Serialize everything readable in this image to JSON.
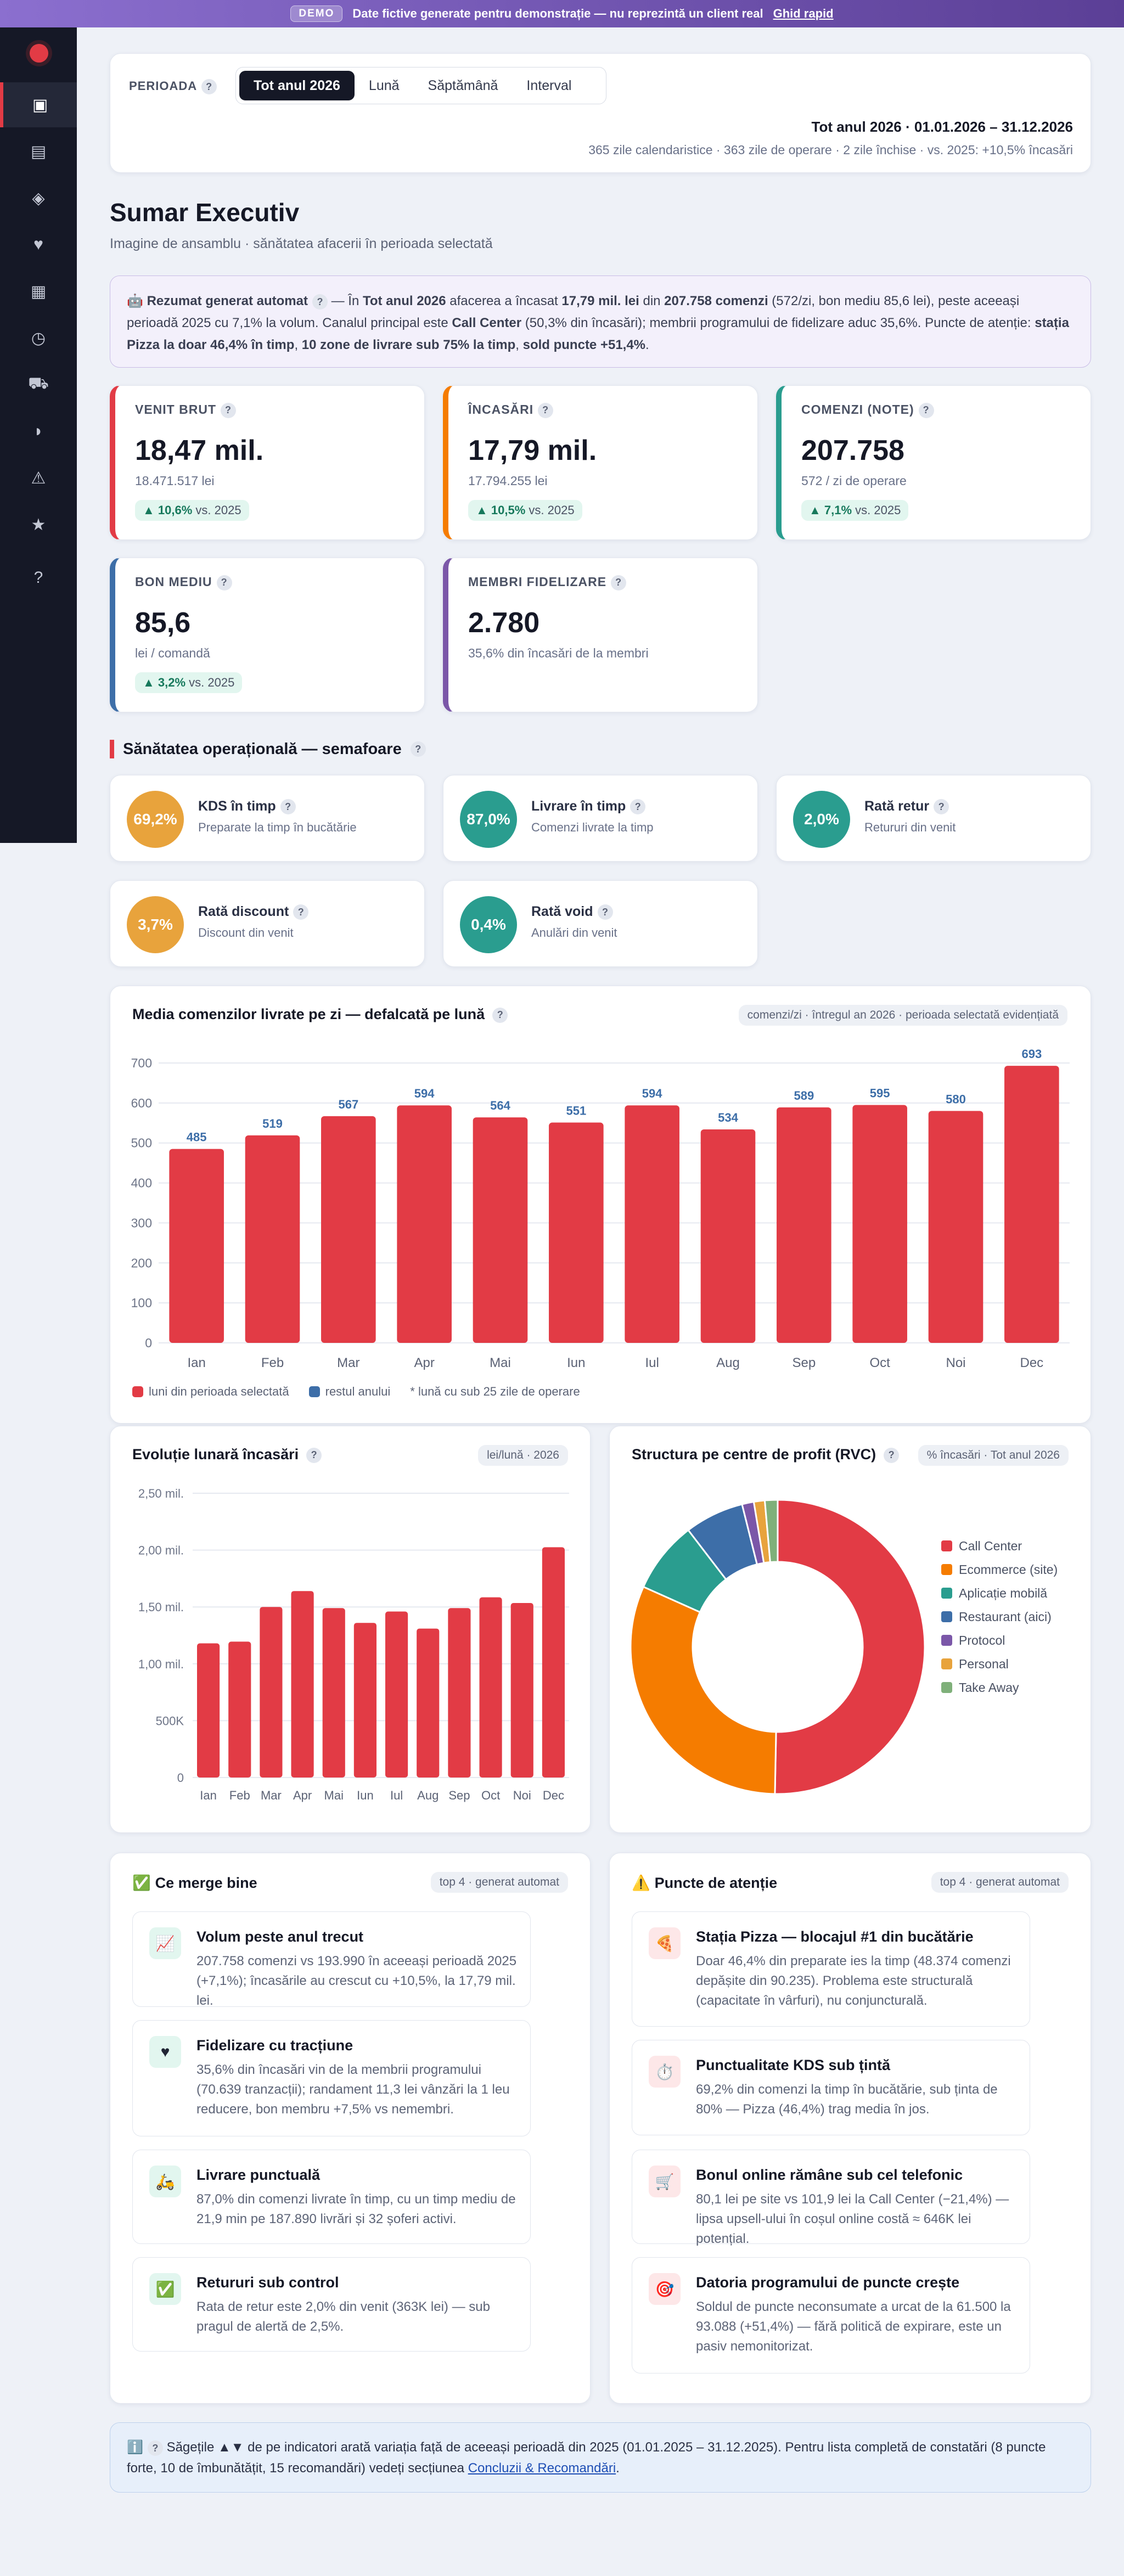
{
  "banner": {
    "tag": "DEMO",
    "text": "Date fictive generate pentru demonstrație — nu reprezintă un client real",
    "link": "Ghid rapid"
  },
  "sidebar": {
    "icons": [
      "dashboard-icon",
      "report-icon",
      "layers-icon",
      "heart-icon",
      "grid-icon",
      "clock-icon",
      "truck-icon",
      "pie-icon",
      "alert-icon",
      "star-icon",
      "help-icon"
    ],
    "glyphs": [
      "▣",
      "▤",
      "◈",
      "♥",
      "▦",
      "◷",
      "⛟",
      "◗",
      "⚠",
      "★",
      "?"
    ]
  },
  "filter": {
    "label": "PERIOADA",
    "tabs": [
      "Tot anul 2026",
      "Lună",
      "Săptămână",
      "Interval"
    ],
    "active": 0,
    "range": "Tot anul 2026 · 01.01.2026 – 31.12.2026",
    "detail": "365 zile calendaristice · 363 zile de operare · 2 zile închise · vs. 2025: +10,5% încasări"
  },
  "page": {
    "title": "Sumar Executiv",
    "subtitle": "Imagine de ansamblu · sănătatea afacerii în perioada selectată"
  },
  "summary": {
    "icon": "🤖",
    "title": "Rezumat generat automat",
    "parts": [
      " — În ",
      "Tot anul 2026",
      " afacerea a încasat ",
      "17,79 mil. lei",
      " din ",
      "207.758 comenzi",
      " (572/zi, bon mediu 85,6 lei), peste aceeași perioadă 2025 cu 7,1% la volum. Canalul principal este ",
      "Call Center",
      " (50,3% din încasări); membrii programului de fidelizare aduc 35,6%. Puncte de atenție: ",
      "stația Pizza la doar 46,4% în timp",
      ", ",
      "10 zone de livrare sub 75% la timp",
      ", ",
      "sold puncte +51,4%",
      "."
    ]
  },
  "kpis": [
    {
      "label": "VENIT BRUT",
      "value": "18,47 mil.",
      "small": "18.471.517 lei",
      "delta": "▲ 10,6%",
      "vs": " vs. 2025",
      "color": "#e23b45"
    },
    {
      "label": "ÎNCASĂRI",
      "value": "17,79 mil.",
      "small": "17.794.255 lei",
      "delta": "▲ 10,5%",
      "vs": " vs. 2025",
      "color": "#f57c00"
    },
    {
      "label": "COMENZI (NOTE)",
      "value": "207.758",
      "small": "572 / zi de operare",
      "delta": "▲ 7,1%",
      "vs": " vs. 2025",
      "color": "#2a9d8f"
    },
    {
      "label": "BON MEDIU",
      "value": "85,6",
      "small": "lei / comandă",
      "delta": "▲ 3,2%",
      "vs": " vs. 2025",
      "color": "#3d6ea8"
    },
    {
      "label": "MEMBRI FIDELIZARE",
      "value": "2.780",
      "small": "35,6% din încasări de la membri",
      "delta": "",
      "vs": "",
      "color": "#7b57a8"
    }
  ],
  "health": {
    "title": "Sănătatea operațională — semafoare",
    "items": [
      {
        "value": "69,2%",
        "title": "KDS în timp",
        "desc": "Preparate la timp în bucătărie",
        "color": "#e8a33c"
      },
      {
        "value": "87,0%",
        "title": "Livrare în timp",
        "desc": "Comenzi livrate la timp",
        "color": "#2a9d8f"
      },
      {
        "value": "2,0%",
        "title": "Rată retur",
        "desc": "Retururi din venit",
        "color": "#2a9d8f"
      },
      {
        "value": "3,7%",
        "title": "Rată discount",
        "desc": "Discount din venit",
        "color": "#e8a33c"
      },
      {
        "value": "0,4%",
        "title": "Rată void",
        "desc": "Anulări din venit",
        "color": "#2a9d8f"
      }
    ]
  },
  "chart_data": [
    {
      "type": "bar",
      "title": "Media comenzilor livrate pe zi — defalcată pe lună",
      "note": "comenzi/zi · întregul an 2026 · perioada selectată evidențiată",
      "categories": [
        "Ian",
        "Feb",
        "Mar",
        "Apr",
        "Mai",
        "Iun",
        "Iul",
        "Aug",
        "Sep",
        "Oct",
        "Noi",
        "Dec"
      ],
      "values": [
        485,
        519,
        567,
        594,
        564,
        551,
        594,
        534,
        589,
        595,
        580,
        693
      ],
      "ylim": [
        0,
        700
      ],
      "yticks": [
        0,
        100,
        200,
        300,
        400,
        500,
        600,
        700
      ],
      "legend": [
        "luni din perioada selectată",
        "restul anului",
        "* lună cu sub 25 zile de operare"
      ],
      "colors": [
        "#e23b45",
        "#3d6ea8"
      ]
    },
    {
      "type": "bar",
      "title": "Evoluție lunară încasări",
      "note": "lei/lună · 2026",
      "categories": [
        "Ian",
        "Feb",
        "Mar",
        "Apr",
        "Mai",
        "Iun",
        "Iul",
        "Aug",
        "Sep",
        "Oct",
        "Noi",
        "Dec"
      ],
      "values": [
        1180000,
        1195000,
        1500000,
        1640000,
        1490000,
        1360000,
        1460000,
        1310000,
        1490000,
        1585000,
        1535000,
        2025000
      ],
      "ylim": [
        0,
        2500000
      ],
      "yticks": [
        "0",
        "500K",
        "1,00 mil.",
        "1,50 mil.",
        "2,00 mil.",
        "2,50 mil."
      ],
      "color": "#e23b45"
    },
    {
      "type": "pie",
      "title": "Structura pe centre de profit (RVC)",
      "note": "% încasări · Tot anul 2026",
      "labels": [
        "Call Center",
        "Ecommerce (site)",
        "Aplicație mobilă",
        "Restaurant (aici)",
        "Protocol",
        "Personal",
        "Take Away"
      ],
      "values": [
        50.3,
        31.4,
        7.9,
        6.5,
        1.3,
        1.2,
        1.4
      ],
      "colors": [
        "#e23b45",
        "#f57c00",
        "#2a9d8f",
        "#3d6ea8",
        "#7b57a8",
        "#e8a33c",
        "#7fb07a"
      ]
    }
  ],
  "good": {
    "icon": "✅",
    "title": "Ce merge bine",
    "pill": "top 4 · generat automat",
    "items": [
      {
        "icon": "📈",
        "title": "Volum peste anul trecut",
        "desc": "207.758 comenzi vs 193.990 în aceeași perioadă 2025 (+7,1%); încasările au crescut cu +10,5%, la 17,79 mil. lei."
      },
      {
        "icon": "♥",
        "title": "Fidelizare cu tracțiune",
        "desc": "35,6% din încasări vin de la membrii programului (70.639 tranzacții); randament 11,3 lei vânzări la 1 leu reducere, bon membru +7,5% vs nemembri."
      },
      {
        "icon": "🛵",
        "title": "Livrare punctuală",
        "desc": "87,0% din comenzi livrate în timp, cu un timp mediu de 21,9 min pe 187.890 livrări și 32 șoferi activi."
      },
      {
        "icon": "✅",
        "title": "Retururi sub control",
        "desc": "Rata de retur este 2,0% din venit (363K lei) — sub pragul de alertă de 2,5%."
      }
    ]
  },
  "attention": {
    "icon": "⚠️",
    "title": "Puncte de atenție",
    "pill": "top 4 · generat automat",
    "items": [
      {
        "icon": "🍕",
        "title": "Stația Pizza — blocajul #1 din bucătărie",
        "desc": "Doar 46,4% din preparate ies la timp (48.374 comenzi depășite din 90.235). Problema este structurală (capacitate în vârfuri), nu conjuncturală."
      },
      {
        "icon": "⏱️",
        "title": "Punctualitate KDS sub țintă",
        "desc": "69,2% din comenzi la timp în bucătărie, sub ținta de 80% — Pizza (46,4%) trag media în jos."
      },
      {
        "icon": "🛒",
        "title": "Bonul online rămâne sub cel telefonic",
        "desc": "80,1 lei pe site vs 101,9 lei la Call Center (−21,4%) — lipsa upsell-ului în coșul online costă ≈ 646K lei potențial."
      },
      {
        "icon": "🎯",
        "title": "Datoria programului de puncte crește",
        "desc": "Soldul de puncte neconsumate a urcat de la 61.500 la 93.088 (+51,4%) — fără politică de expirare, este un pasiv nemonitorizat."
      }
    ]
  },
  "footer": {
    "icon": "ℹ️",
    "text": "Săgețile ▲▼ de pe indicatori arată variația față de aceeași perioadă din 2025 (01.01.2025 – 31.12.2025). Pentru lista completă de constatări (8 puncte forte, 10 de îmbunătățit, 15 recomandări) vedeți secțiunea ",
    "link": "Concluzii & Recomandări",
    "end": "."
  }
}
